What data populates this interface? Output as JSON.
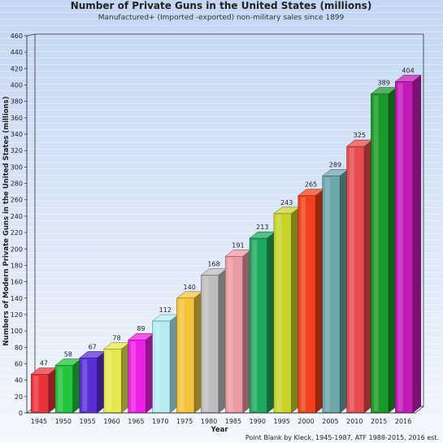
{
  "chart_data": {
    "type": "bar",
    "title": "Number of Private Guns in the United States (millions)",
    "subtitle": "Manufactured+ (Imported -exported) non-military sales since 1899",
    "xlabel": "Year",
    "ylabel": "Numbers of Modern Private Guns in the United States (millions)",
    "ylim": [
      0,
      460
    ],
    "ytick_step": 20,
    "categories": [
      "1945",
      "1950",
      "1955",
      "1960",
      "1965",
      "1970",
      "1975",
      "1980",
      "1985",
      "1990",
      "1995",
      "2000",
      "2005",
      "2010",
      "2015",
      "2016"
    ],
    "values": [
      47,
      58,
      67,
      78,
      89,
      112,
      140,
      168,
      191,
      213,
      243,
      265,
      289,
      325,
      389,
      404
    ],
    "bar_colors": [
      "#e8343a",
      "#22c43a",
      "#5a2fd8",
      "#e6e84e",
      "#ee1fe6",
      "#b4ecf2",
      "#f4c43a",
      "#bdbdbd",
      "#ec9aa4",
      "#1fa860",
      "#c8d42a",
      "#f2401a",
      "#6aa6aa",
      "#e84a4e",
      "#1a9a2a",
      "#c41ab8"
    ],
    "grid": false,
    "source": "Point Blank by Kleck, 1945-1987, ATF 1988-2015, 2016 est."
  }
}
